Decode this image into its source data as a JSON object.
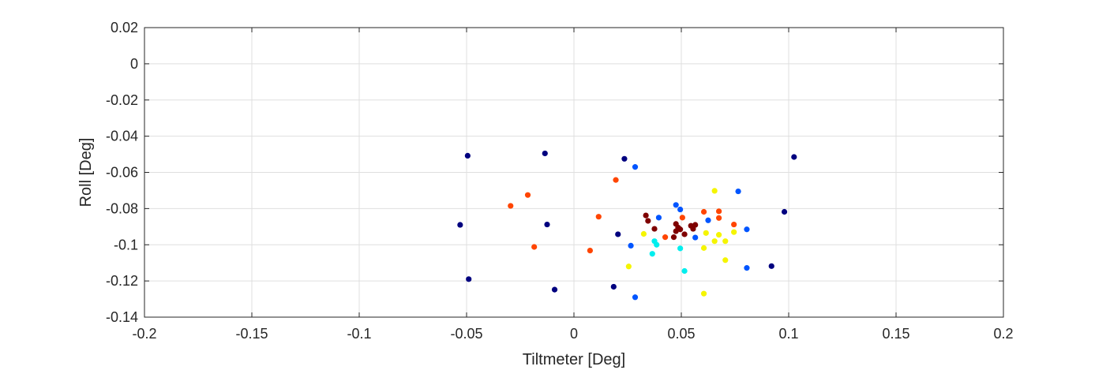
{
  "chart_data": {
    "type": "scatter",
    "title": "",
    "xlabel": "Tiltmeter [Deg]",
    "ylabel": "Roll [Deg]",
    "xlim": [
      -0.2,
      0.2
    ],
    "ylim": [
      -0.14,
      0.02
    ],
    "xticks": [
      -0.2,
      -0.15,
      -0.1,
      -0.05,
      0,
      0.05,
      0.1,
      0.15,
      0.2
    ],
    "yticks": [
      -0.14,
      -0.12,
      -0.1,
      -0.08,
      -0.06,
      -0.04,
      -0.02,
      0,
      0.02
    ],
    "xtick_labels": [
      "-0.2",
      "-0.15",
      "-0.1",
      "-0.05",
      "0",
      "0.05",
      "0.1",
      "0.15",
      "0.2"
    ],
    "ytick_labels": [
      "-0.14",
      "-0.12",
      "-0.1",
      "-0.08",
      "-0.06",
      "-0.04",
      "-0.02",
      "0",
      "0.02"
    ],
    "grid": true,
    "series": [
      {
        "color": "#00007f",
        "x": [
          -0.0495,
          -0.0135,
          -0.053,
          -0.0125,
          -0.049,
          -0.009,
          0.0185,
          0.0205,
          0.0235,
          0.1025,
          0.098,
          0.092
        ],
        "y": [
          -0.0508,
          -0.0495,
          -0.089,
          -0.0888,
          -0.119,
          -0.1248,
          -0.1232,
          -0.0942,
          -0.0525,
          -0.0515,
          -0.0818,
          -0.1118
        ]
      },
      {
        "color": "#0055ff",
        "x": [
          0.0285,
          0.0765,
          0.0475,
          0.0495,
          0.0395,
          0.0625,
          0.0805,
          0.0565,
          0.0265,
          0.0805,
          0.0285
        ],
        "y": [
          -0.057,
          -0.0705,
          -0.078,
          -0.0805,
          -0.085,
          -0.0865,
          -0.0915,
          -0.096,
          -0.1005,
          -0.1128,
          -0.129
        ]
      },
      {
        "color": "#00eeee",
        "x": [
          0.0375,
          0.0385,
          0.0365,
          0.0495,
          0.0515
        ],
        "y": [
          -0.098,
          -0.1,
          -0.105,
          -0.102,
          -0.1145
        ]
      },
      {
        "color": "#f5f500",
        "x": [
          0.0655,
          0.0325,
          0.0615,
          0.0675,
          0.0745,
          0.0655,
          0.0705,
          0.0605,
          0.0705,
          0.0255,
          0.0605
        ],
        "y": [
          -0.0702,
          -0.094,
          -0.0935,
          -0.0945,
          -0.093,
          -0.098,
          -0.098,
          -0.1018,
          -0.1085,
          -0.112,
          -0.127
        ]
      },
      {
        "color": "#ff4500",
        "x": [
          0.0195,
          -0.0215,
          -0.0295,
          0.0115,
          -0.0185,
          0.0075,
          0.0505,
          0.0605,
          0.0675,
          0.0675,
          0.0745,
          0.0425
        ],
        "y": [
          -0.0642,
          -0.0725,
          -0.0785,
          -0.0845,
          -0.1012,
          -0.1032,
          -0.085,
          -0.0818,
          -0.0815,
          -0.0852,
          -0.0888,
          -0.0958
        ]
      },
      {
        "color": "#7f0000",
        "x": [
          0.0335,
          0.0345,
          0.0375,
          0.0475,
          0.0485,
          0.0495,
          0.0475,
          0.0515,
          0.0545,
          0.0555,
          0.0565,
          0.0465
        ],
        "y": [
          -0.0838,
          -0.0868,
          -0.0912,
          -0.0885,
          -0.0905,
          -0.0915,
          -0.0925,
          -0.0942,
          -0.0895,
          -0.0912,
          -0.089,
          -0.0958
        ]
      }
    ]
  }
}
